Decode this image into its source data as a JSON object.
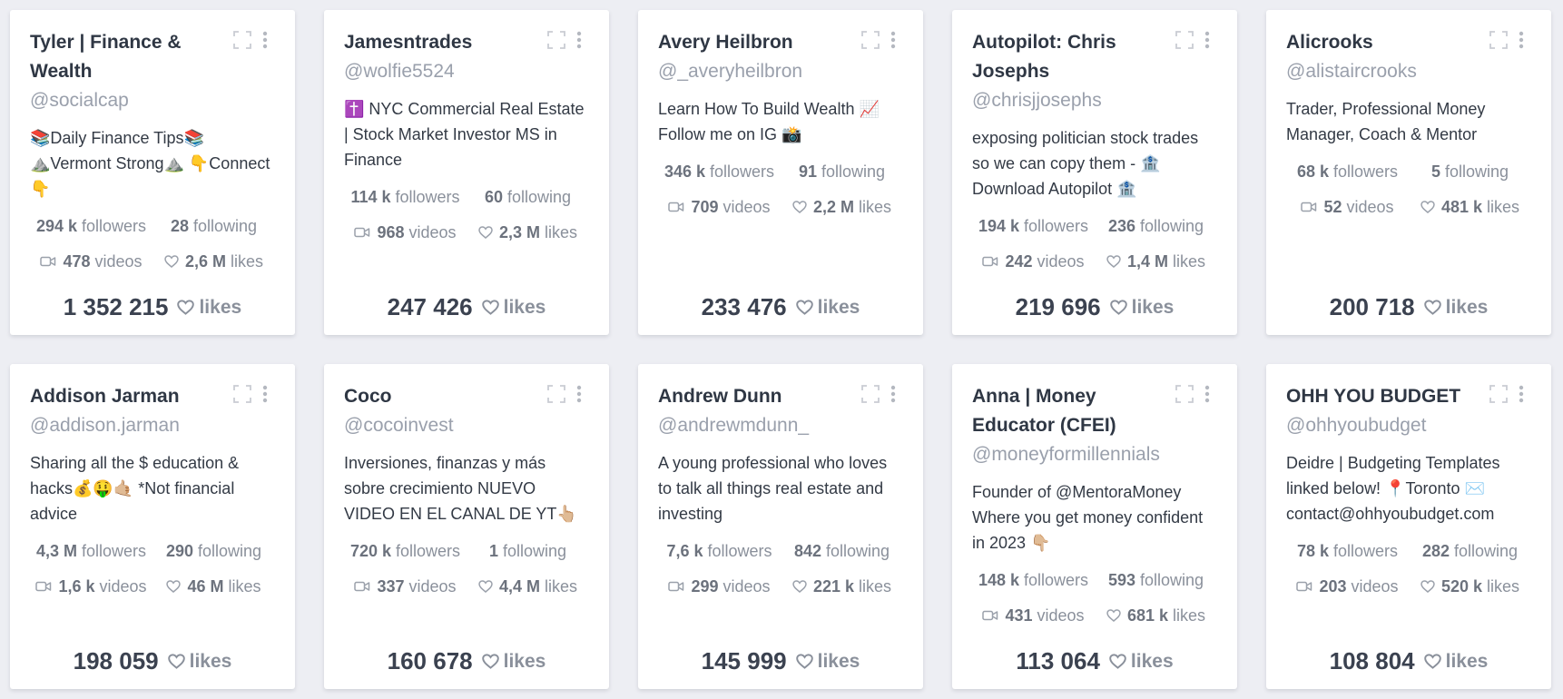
{
  "stat_labels": {
    "followers": "followers",
    "following": "following",
    "videos": "videos",
    "likes": "likes"
  },
  "total_label": "likes",
  "icons": {
    "expand": "expand-icon",
    "more": "more-vertical-icon",
    "video": "video-camera-icon",
    "heart": "heart-icon"
  },
  "colors": {
    "background": "#edeef3",
    "card": "#ffffff",
    "name": "#2f3744",
    "handle": "#9aa0ac",
    "stat_text": "#8a909b",
    "icon": "#c4c8cf"
  },
  "cards": [
    {
      "name": "Tyler | Finance & Wealth",
      "handle": "@socialcap",
      "bio": "📚Daily Finance Tips📚 ⛰️Vermont Strong⛰️ 👇Connect 👇",
      "followers": "294 k",
      "following": "28",
      "videos": "478",
      "likes": "2,6 M",
      "total": "1 352 215"
    },
    {
      "name": "Jamesntrades",
      "handle": "@wolfie5524",
      "bio": "✝️ NYC Commercial Real Estate | Stock Market Investor MS in Finance",
      "followers": "114 k",
      "following": "60",
      "videos": "968",
      "likes": "2,3 M",
      "total": "247 426"
    },
    {
      "name": "Avery Heilbron",
      "handle": "@_averyheilbron",
      "bio": "Learn How To Build Wealth 📈 Follow me on IG 📸",
      "followers": "346 k",
      "following": "91",
      "videos": "709",
      "likes": "2,2 M",
      "total": "233 476"
    },
    {
      "name": "Autopilot: Chris Josephs",
      "handle": "@chrisjjosephs",
      "bio": "exposing politician stock trades so we can copy them - 🏦 Download Autopilot 🏦",
      "followers": "194 k",
      "following": "236",
      "videos": "242",
      "likes": "1,4 M",
      "total": "219 696"
    },
    {
      "name": "Alicrooks",
      "handle": "@alistaircrooks",
      "bio": "Trader, Professional Money Manager, Coach & Mentor",
      "followers": "68 k",
      "following": "5",
      "videos": "52",
      "likes": "481 k",
      "total": "200 718"
    },
    {
      "name": "Addison Jarman",
      "handle": "@addison.jarman",
      "bio": "Sharing all the $ education & hacks💰🤑🤙🏼 *Not financial advice",
      "followers": "4,3 M",
      "following": "290",
      "videos": "1,6 k",
      "likes": "46 M",
      "total": "198 059"
    },
    {
      "name": "Coco",
      "handle": "@cocoinvest",
      "bio": "Inversiones, finanzas y más sobre crecimiento NUEVO VIDEO EN EL CANAL DE YT👆🏼",
      "followers": "720 k",
      "following": "1",
      "videos": "337",
      "likes": "4,4 M",
      "total": "160 678"
    },
    {
      "name": "Andrew Dunn",
      "handle": "@andrewmdunn_",
      "bio": "A young professional who loves to talk all things real estate and investing",
      "followers": "7,6 k",
      "following": "842",
      "videos": "299",
      "likes": "221 k",
      "total": "145 999"
    },
    {
      "name": "Anna | Money Educator (CFEI)",
      "handle": "@moneyformillennials",
      "bio": "Founder of @MentoraMoney Where you get money confident in 2023 👇🏼",
      "followers": "148 k",
      "following": "593",
      "videos": "431",
      "likes": "681 k",
      "total": "113 064"
    },
    {
      "name": "OHH YOU BUDGET",
      "handle": "@ohhyoubudget",
      "bio": "Deidre | Budgeting Templates linked below! 📍Toronto ✉️ contact@ohhyoubudget.com",
      "followers": "78 k",
      "following": "282",
      "videos": "203",
      "likes": "520 k",
      "total": "108 804"
    }
  ]
}
